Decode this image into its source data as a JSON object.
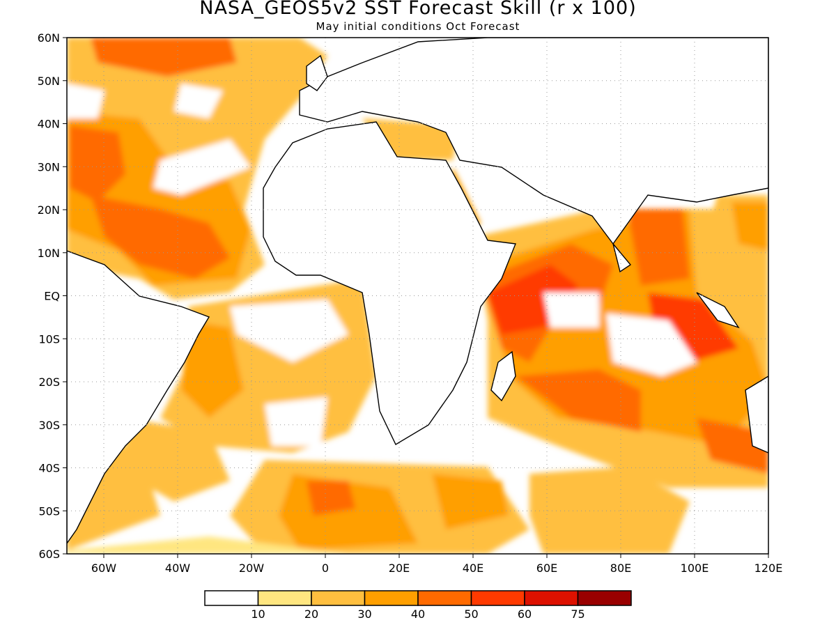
{
  "title": "NASA_GEOS5v2 SST Forecast Skill (r x 100)",
  "subtitle": "May initial conditions  Oct Forecast",
  "map": {
    "lon_range": [
      -70,
      120
    ],
    "lat_range": [
      -60,
      60
    ],
    "ocean_color": "#ffffff",
    "land_color": "#ffffff",
    "grid": "dotted"
  },
  "lat_labels": [
    "60N",
    "50N",
    "40N",
    "30N",
    "20N",
    "10N",
    "EQ",
    "10S",
    "20S",
    "30S",
    "40S",
    "50S",
    "60S"
  ],
  "lat_values": [
    60,
    50,
    40,
    30,
    20,
    10,
    0,
    -10,
    -20,
    -30,
    -40,
    -50,
    -60
  ],
  "lon_labels": [
    "60W",
    "40W",
    "20W",
    "0",
    "20E",
    "40E",
    "60E",
    "80E",
    "100E",
    "120E"
  ],
  "lon_values": [
    -60,
    -40,
    -20,
    0,
    20,
    40,
    60,
    80,
    100,
    120
  ],
  "colorbar": {
    "colors": [
      "#ffffff",
      "#ffe680",
      "#ffbf3f",
      "#ff9f00",
      "#ff6a00",
      "#ff3a00",
      "#dd1100",
      "#990000"
    ],
    "labels": [
      "10",
      "20",
      "30",
      "40",
      "50",
      "60",
      "75"
    ]
  },
  "chart_data": {
    "type": "heatmap",
    "title": "NASA_GEOS5v2 SST Forecast Skill (r x 100)",
    "subtitle": "May initial conditions  Oct Forecast",
    "xlim": [
      -70,
      120
    ],
    "ylim": [
      -60,
      60
    ],
    "levels": [
      10,
      20,
      30,
      40,
      50,
      60,
      75
    ],
    "high_skill_regions": [
      {
        "lon": -60,
        "lat": 55,
        "value": 55
      },
      {
        "lon": -55,
        "lat": 32,
        "value": 55
      },
      {
        "lon": -45,
        "lat": 15,
        "value": 55
      },
      {
        "lon": -30,
        "lat": 10,
        "value": 50
      },
      {
        "lon": -25,
        "lat": -15,
        "value": 45
      },
      {
        "lon": 0,
        "lat": -48,
        "value": 55
      },
      {
        "lon": 45,
        "lat": -3,
        "value": 65
      },
      {
        "lon": 60,
        "lat": -20,
        "value": 60
      },
      {
        "lon": 95,
        "lat": 10,
        "value": 60
      },
      {
        "lon": 100,
        "lat": -10,
        "value": 65
      },
      {
        "lon": 85,
        "lat": -25,
        "value": 55
      }
    ]
  }
}
